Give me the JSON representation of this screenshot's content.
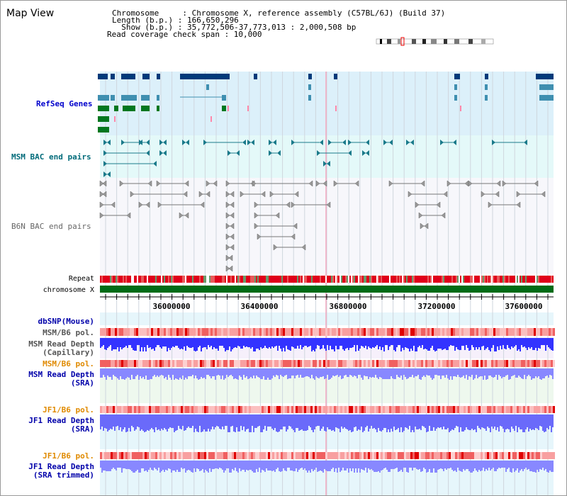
{
  "view": {
    "title": "Map View"
  },
  "info": {
    "chromosome": "Chromosome     : Chromosome X, reference assembly (C57BL/6J) (Build 37)",
    "length": "Length (b.p.) : 166,650,296",
    "show": "  Show (b.p.) : 35,772,506-37,773,013 : 2,000,508 bp",
    "coverage": "Read coverage check span : 10,000"
  },
  "tracks": {
    "refseq": {
      "label": "RefSeq Genes",
      "color": "#0000cc"
    },
    "msm_bac": {
      "label": "MSM BAC end pairs",
      "color": "#006b7a"
    },
    "b6n_bac": {
      "label": "B6N BAC end pairs",
      "color": "#666666"
    },
    "repeat": {
      "label": "Repeat"
    },
    "chromosome": {
      "label": "chromosome X"
    },
    "dbsnp": {
      "label": "dbSNP(Mouse)",
      "color": "#0000aa"
    },
    "msm_b6_pol_cap": {
      "label": "MSM/B6 pol.",
      "color": "#555555"
    },
    "msm_depth_cap": {
      "label1": "MSM Read Depth",
      "label2": "(Capillary)",
      "color": "#555555"
    },
    "msm_b6_pol_sra": {
      "label": "MSM/B6 pol.",
      "color": "#e08a00"
    },
    "msm_depth_sra": {
      "label1": "MSM Read Depth",
      "label2": "(SRA)",
      "color": "#0000aa"
    },
    "jf1_b6_pol": {
      "label": "JF1/B6 pol.",
      "color": "#e08a00"
    },
    "jf1_depth_sra": {
      "label1": "JF1 Read Depth",
      "label2": "(SRA)",
      "color": "#0000aa"
    },
    "jf1_b6_pol_2": {
      "label": "JF1/B6 pol.",
      "color": "#e08a00"
    },
    "jf1_depth_trim": {
      "label1": "JF1 Read Depth",
      "label2": "(SRA trimmed)",
      "color": "#0000aa"
    }
  },
  "axis": {
    "ticks": [
      "36000000",
      "36400000",
      "36800000",
      "37200000",
      "37600000"
    ]
  },
  "colors": {
    "refseq_bg": "#dcf0fa",
    "msm_bg": "#e4f9f9",
    "gene_dark": "#003a7a",
    "gene_light": "#3f8fb0",
    "gene_green": "#00771f",
    "chrom_green": "#006b16",
    "repeat_red": "#e0001a",
    "depth_blue": "#3333ff",
    "depth_light": "#8888ff"
  }
}
